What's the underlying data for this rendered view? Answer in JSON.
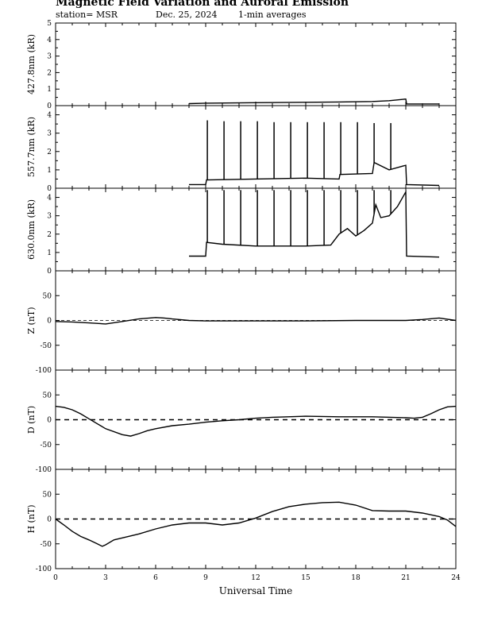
{
  "header": {
    "title": "Magnetic Field Variation and Auroral Emission",
    "station": "station= MSR",
    "date": "Dec. 25, 2024",
    "averaging": "1-min averages"
  },
  "chart_data": [
    {
      "type": "line",
      "panel": "427.8nm",
      "ylabel": "427.8nm (kR)",
      "ylim": [
        0,
        5
      ],
      "yticks": [
        0,
        1,
        2,
        3,
        4,
        5
      ],
      "xlim": [
        0,
        24
      ],
      "series": [
        {
          "x": [
            8.0,
            9.0,
            12.0,
            15.0,
            17.0,
            19.0,
            20.0,
            21.0,
            21.05,
            23.0
          ],
          "values": [
            0.12,
            0.15,
            0.18,
            0.2,
            0.22,
            0.25,
            0.3,
            0.4,
            0.1,
            0.1
          ]
        }
      ]
    },
    {
      "type": "line",
      "panel": "557.7nm",
      "ylabel": "557.7nm (kR)",
      "ylim": [
        0,
        4.5
      ],
      "yticks": [
        0,
        1,
        2,
        3,
        4
      ],
      "xlim": [
        0,
        24
      ],
      "series": [
        {
          "x": [
            8.0,
            9.0,
            9.05,
            12.0,
            15.0,
            17.0,
            17.05,
            19.0,
            19.1,
            20.0,
            21.0,
            21.05,
            23.0
          ],
          "values": [
            0.2,
            0.2,
            0.45,
            0.5,
            0.55,
            0.5,
            0.75,
            0.8,
            1.4,
            1.0,
            1.25,
            0.2,
            0.15
          ]
        }
      ],
      "spikes": {
        "x": [
          9.1,
          10.1,
          11.1,
          12.1,
          13.1,
          14.1,
          15.1,
          16.1,
          17.1,
          18.1,
          19.1,
          20.1
        ],
        "values": [
          3.7,
          3.65,
          3.65,
          3.65,
          3.6,
          3.6,
          3.6,
          3.6,
          3.6,
          3.6,
          3.55,
          3.55
        ]
      }
    },
    {
      "type": "line",
      "panel": "630.0nm",
      "ylabel": "630.0nm (kR)",
      "ylim": [
        0,
        4.5
      ],
      "yticks": [
        0,
        1,
        2,
        3,
        4
      ],
      "xlim": [
        0,
        24
      ],
      "series": [
        {
          "x": [
            8.0,
            9.0,
            9.05,
            10.0,
            12.0,
            15.0,
            16.5,
            17.0,
            17.5,
            18.0,
            18.5,
            19.0,
            19.2,
            19.5,
            20.0,
            20.5,
            21.0,
            21.05,
            23.0
          ],
          "values": [
            0.8,
            0.8,
            1.55,
            1.45,
            1.35,
            1.35,
            1.4,
            2.0,
            2.3,
            1.9,
            2.2,
            2.6,
            3.6,
            2.9,
            3.0,
            3.5,
            4.3,
            0.8,
            0.75
          ]
        }
      ],
      "spikes": {
        "x": [
          9.1,
          10.1,
          11.1,
          12.1,
          13.1,
          14.1,
          15.1,
          16.1,
          17.1,
          18.1,
          19.1,
          20.1
        ],
        "values": [
          4.4,
          4.4,
          4.4,
          4.4,
          4.4,
          4.4,
          4.4,
          4.4,
          4.4,
          4.4,
          4.4,
          4.4
        ]
      }
    },
    {
      "type": "line",
      "panel": "Z",
      "ylabel": "Z (nT)",
      "ylim": [
        -100,
        100
      ],
      "yticks": [
        -100,
        -50,
        0,
        50
      ],
      "xlim": [
        0,
        24
      ],
      "zero_line": true,
      "series": [
        {
          "x": [
            0,
            1,
            2,
            3,
            4,
            5,
            6,
            6.5,
            7,
            8,
            9,
            12,
            15,
            18,
            21,
            22,
            23,
            24
          ],
          "values": [
            -2,
            -3,
            -5,
            -7,
            -2,
            3,
            6,
            5,
            3,
            0,
            -1,
            -1,
            -1,
            0,
            0,
            2,
            5,
            0
          ]
        }
      ]
    },
    {
      "type": "line",
      "panel": "D",
      "ylabel": "D (nT)",
      "ylim": [
        -100,
        100
      ],
      "yticks": [
        -100,
        -50,
        0,
        50
      ],
      "xlim": [
        0,
        24
      ],
      "zero_line": true,
      "series": [
        {
          "x": [
            0,
            0.5,
            1,
            1.5,
            2,
            3,
            4,
            4.5,
            5,
            5.5,
            6,
            7,
            8,
            9,
            10,
            11,
            12,
            13,
            15,
            17,
            19,
            21,
            21.5,
            22,
            22.5,
            23,
            23.5,
            24
          ],
          "values": [
            27,
            25,
            20,
            12,
            2,
            -18,
            -30,
            -33,
            -28,
            -22,
            -18,
            -12,
            -9,
            -5,
            -2,
            0,
            3,
            5,
            7,
            6,
            6,
            4,
            3,
            5,
            12,
            20,
            26,
            27
          ]
        }
      ]
    },
    {
      "type": "line",
      "panel": "H",
      "ylabel": "H (nT)",
      "ylim": [
        -100,
        100
      ],
      "yticks": [
        -100,
        -50,
        0,
        50
      ],
      "xlim": [
        0,
        24
      ],
      "zero_line": true,
      "xticks": [
        0,
        3,
        6,
        9,
        12,
        15,
        18,
        21,
        24
      ],
      "xlabel": "Universal Time",
      "series": [
        {
          "x": [
            0,
            0.5,
            1,
            1.5,
            2,
            2.5,
            2.8,
            3,
            3.5,
            4,
            5,
            6,
            7,
            8,
            9,
            10,
            11,
            12,
            13,
            14,
            15,
            16,
            17,
            18,
            19,
            20,
            21,
            22,
            23,
            23.5,
            24
          ],
          "values": [
            0,
            -12,
            -25,
            -35,
            -42,
            -50,
            -55,
            -52,
            -42,
            -38,
            -30,
            -20,
            -12,
            -8,
            -8,
            -12,
            -8,
            2,
            15,
            25,
            30,
            33,
            34,
            28,
            17,
            16,
            16,
            12,
            5,
            -2,
            -15
          ]
        }
      ]
    }
  ]
}
